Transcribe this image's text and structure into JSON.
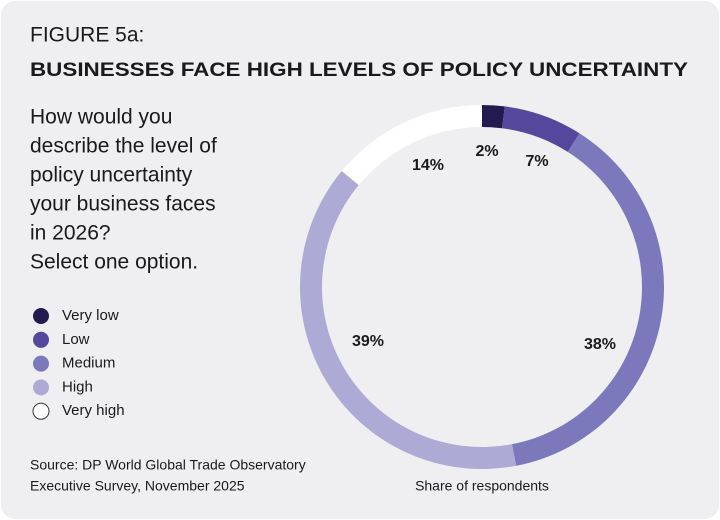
{
  "chart_data": {
    "type": "donut",
    "figure_label": "FIGURE 5a:",
    "title": "BUSINESSES FACE HIGH LEVELS OF POLICY UNCERTAINTY",
    "question": [
      "How would you",
      "describe the level of",
      "policy uncertainty",
      "your business faces",
      "in 2026?",
      "Select one option."
    ],
    "categories": [
      "Very low",
      "Low",
      "Medium",
      "High",
      "Very high"
    ],
    "values": [
      2,
      7,
      38,
      39,
      14
    ],
    "value_labels": [
      "2%",
      "7%",
      "38%",
      "39%",
      "14%"
    ],
    "colors": [
      "#231a4f",
      "#54479c",
      "#7b78bb",
      "#adaad6",
      "#ffffff"
    ],
    "source": [
      "Source: DP World Global Trade Observatory",
      "Executive Survey, November 2025"
    ],
    "caption": "Share of respondents"
  }
}
